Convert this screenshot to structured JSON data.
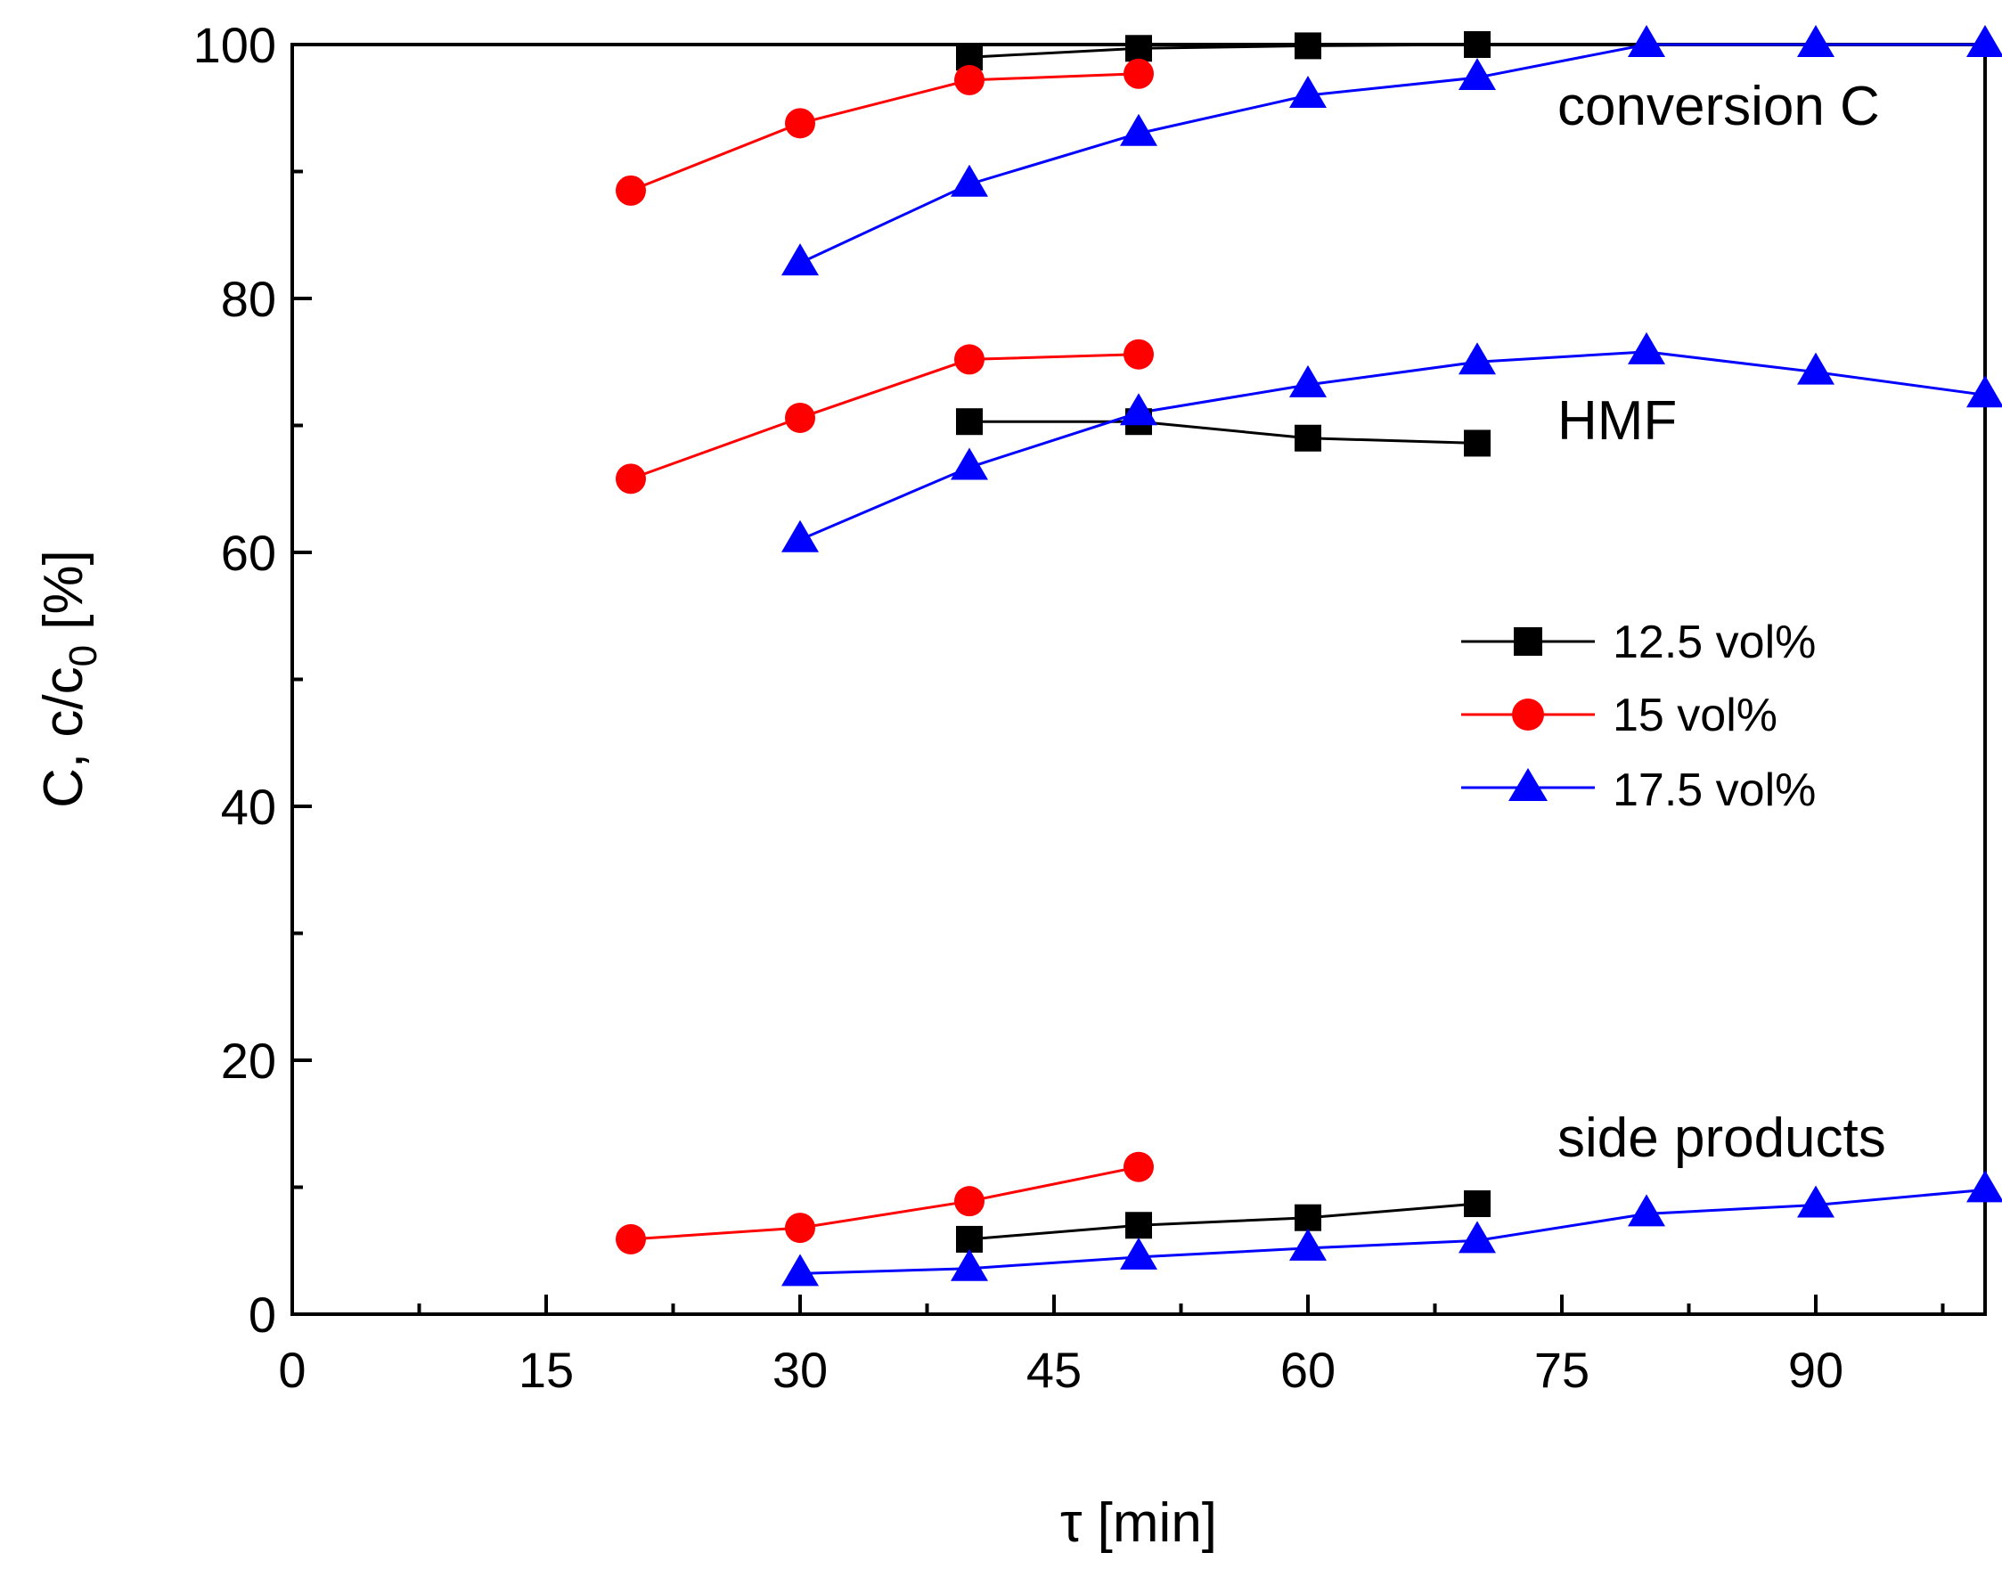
{
  "chart_data": {
    "type": "line",
    "title": "",
    "xlabel": "τ [min]",
    "ylabel_parts": {
      "main": "C, c/c",
      "subscript": "0",
      "unit": " [%]"
    },
    "xlim": [
      0,
      100
    ],
    "ylim": [
      0,
      100
    ],
    "xticks": [
      0,
      15,
      30,
      45,
      60,
      75,
      90
    ],
    "xminor": [
      7.5,
      22.5,
      37.5,
      52.5,
      67.5,
      82.5,
      97.5
    ],
    "yticks": [
      0,
      20,
      40,
      60,
      80,
      100
    ],
    "yminor": [
      10,
      30,
      50,
      70,
      90
    ],
    "grid": false,
    "legend_position": "right-middle",
    "series": [
      {
        "name": "12.5 vol%",
        "color": "#000000",
        "marker": "square",
        "groups": [
          {
            "group": "conversion C",
            "x": [
              40,
              50,
              60,
              70
            ],
            "y": [
              99.0,
              99.7,
              99.9,
              100.0
            ]
          },
          {
            "group": "HMF",
            "x": [
              40,
              50,
              60,
              70
            ],
            "y": [
              70.3,
              70.3,
              69.0,
              68.6
            ]
          },
          {
            "group": "side products",
            "x": [
              40,
              50,
              60,
              70
            ],
            "y": [
              5.9,
              7.0,
              7.6,
              8.7
            ]
          }
        ]
      },
      {
        "name": "15 vol%",
        "color": "#ff0000",
        "marker": "circle",
        "groups": [
          {
            "group": "conversion C",
            "x": [
              20,
              30,
              40,
              50
            ],
            "y": [
              88.5,
              93.8,
              97.2,
              97.7
            ]
          },
          {
            "group": "HMF",
            "x": [
              20,
              30,
              40,
              50
            ],
            "y": [
              65.8,
              70.6,
              75.2,
              75.6
            ]
          },
          {
            "group": "side products",
            "x": [
              20,
              30,
              40,
              50
            ],
            "y": [
              5.9,
              6.8,
              8.9,
              11.6
            ]
          }
        ]
      },
      {
        "name": "17.5 vol%",
        "color": "#0000ff",
        "marker": "triangle",
        "groups": [
          {
            "group": "conversion C",
            "x": [
              30,
              40,
              50,
              60,
              70,
              80,
              90,
              100
            ],
            "y": [
              82.8,
              89.0,
              93.0,
              96.0,
              97.4,
              100.0,
              100.0,
              100.0
            ]
          },
          {
            "group": "HMF",
            "x": [
              30,
              40,
              50,
              60,
              70,
              80,
              90,
              100
            ],
            "y": [
              61.0,
              66.7,
              71.0,
              73.2,
              75.0,
              75.8,
              74.2,
              72.4
            ]
          },
          {
            "group": "side products",
            "x": [
              30,
              40,
              50,
              60,
              70,
              80,
              90,
              100
            ],
            "y": [
              3.2,
              3.6,
              4.5,
              5.2,
              5.8,
              7.9,
              8.6,
              9.8
            ]
          }
        ]
      }
    ],
    "annotations": [
      "conversion C",
      "HMF",
      "side products"
    ]
  }
}
